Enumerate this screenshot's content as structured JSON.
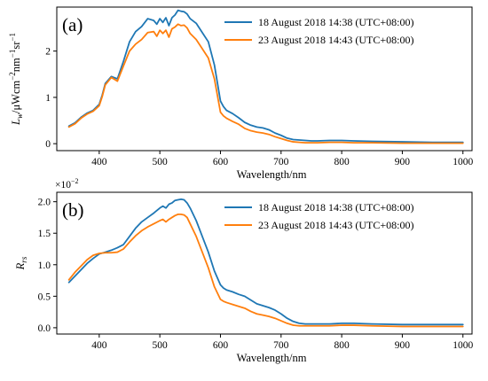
{
  "chart_data": [
    {
      "type": "line",
      "panel_label": "(a)",
      "xlabel": "Wavelength/nm",
      "ylabel_parts": [
        "L",
        "w",
        "/μWcm",
        "−2",
        "nm",
        "−1",
        "sr",
        "−1"
      ],
      "xlim": [
        330,
        1015
      ],
      "ylim": [
        -0.15,
        2.95
      ],
      "xticks": [
        400,
        500,
        600,
        700,
        800,
        900,
        1000
      ],
      "yticks": [
        0,
        1,
        2
      ],
      "legend_position": "top-right",
      "series": [
        {
          "name": "18 August 2018 14:38 (UTC+08:00)",
          "color": "#1f77b4",
          "x": [
            350,
            360,
            370,
            380,
            390,
            400,
            405,
            410,
            420,
            430,
            440,
            450,
            460,
            470,
            480,
            490,
            495,
            500,
            505,
            510,
            515,
            520,
            525,
            530,
            535,
            540,
            545,
            550,
            560,
            570,
            580,
            590,
            600,
            605,
            610,
            620,
            630,
            640,
            650,
            660,
            670,
            680,
            690,
            700,
            710,
            720,
            730,
            740,
            750,
            760,
            780,
            800,
            820,
            850,
            900,
            950,
            1000
          ],
          "y": [
            0.38,
            0.45,
            0.57,
            0.66,
            0.72,
            0.85,
            1.05,
            1.3,
            1.45,
            1.4,
            1.78,
            2.2,
            2.42,
            2.53,
            2.7,
            2.66,
            2.58,
            2.7,
            2.62,
            2.72,
            2.55,
            2.72,
            2.78,
            2.88,
            2.86,
            2.85,
            2.8,
            2.7,
            2.6,
            2.4,
            2.2,
            1.7,
            0.92,
            0.8,
            0.72,
            0.65,
            0.56,
            0.46,
            0.4,
            0.36,
            0.34,
            0.3,
            0.23,
            0.18,
            0.12,
            0.09,
            0.08,
            0.07,
            0.06,
            0.06,
            0.07,
            0.07,
            0.06,
            0.05,
            0.04,
            0.03,
            0.03
          ]
        },
        {
          "name": "23 August 2018 14:43 (UTC+08:00)",
          "color": "#ff7f0e",
          "x": [
            350,
            360,
            370,
            380,
            390,
            400,
            405,
            410,
            420,
            430,
            440,
            450,
            460,
            470,
            480,
            490,
            495,
            500,
            505,
            510,
            515,
            520,
            525,
            530,
            535,
            540,
            545,
            550,
            560,
            570,
            580,
            590,
            600,
            605,
            610,
            620,
            630,
            640,
            650,
            660,
            670,
            680,
            690,
            700,
            710,
            720,
            730,
            740,
            750,
            760,
            780,
            800,
            820,
            850,
            900,
            950,
            1000
          ],
          "y": [
            0.36,
            0.43,
            0.55,
            0.64,
            0.7,
            0.82,
            1.02,
            1.27,
            1.43,
            1.35,
            1.68,
            2.0,
            2.15,
            2.25,
            2.4,
            2.42,
            2.32,
            2.45,
            2.38,
            2.45,
            2.3,
            2.48,
            2.52,
            2.58,
            2.55,
            2.56,
            2.5,
            2.38,
            2.25,
            2.05,
            1.85,
            1.4,
            0.68,
            0.6,
            0.55,
            0.48,
            0.42,
            0.33,
            0.28,
            0.25,
            0.23,
            0.2,
            0.15,
            0.11,
            0.07,
            0.04,
            0.03,
            0.02,
            0.02,
            0.02,
            0.03,
            0.03,
            0.02,
            0.02,
            0.01,
            0.01,
            0.01
          ]
        }
      ]
    },
    {
      "type": "line",
      "panel_label": "(b)",
      "xlabel": "Wavelength/nm",
      "ylabel_parts": [
        "R",
        "rs"
      ],
      "scale_label_parts": [
        "×10",
        "−2"
      ],
      "xlim": [
        330,
        1015
      ],
      "ylim": [
        -0.1,
        2.15
      ],
      "xticks": [
        400,
        500,
        600,
        700,
        800,
        900,
        1000
      ],
      "yticks": [
        0.0,
        0.5,
        1.0,
        1.5,
        2.0
      ],
      "ytick_labels": [
        "0.0",
        "0.5",
        "1.0",
        "1.5",
        "2.0"
      ],
      "legend_position": "top-right",
      "series": [
        {
          "name": "18 August 2018 14:38 (UTC+08:00)",
          "color": "#1f77b4",
          "x": [
            350,
            360,
            370,
            380,
            390,
            400,
            410,
            420,
            430,
            440,
            450,
            460,
            470,
            480,
            490,
            500,
            505,
            510,
            515,
            520,
            525,
            530,
            535,
            540,
            545,
            550,
            560,
            570,
            580,
            590,
            600,
            605,
            610,
            620,
            630,
            640,
            650,
            660,
            670,
            680,
            690,
            700,
            710,
            720,
            730,
            740,
            750,
            760,
            780,
            800,
            820,
            850,
            900,
            950,
            1000
          ],
          "y": [
            0.72,
            0.82,
            0.92,
            1.02,
            1.1,
            1.17,
            1.2,
            1.23,
            1.27,
            1.32,
            1.45,
            1.58,
            1.68,
            1.75,
            1.82,
            1.9,
            1.93,
            1.9,
            1.96,
            1.98,
            2.02,
            2.03,
            2.04,
            2.03,
            1.98,
            1.9,
            1.7,
            1.45,
            1.2,
            0.9,
            0.68,
            0.63,
            0.6,
            0.57,
            0.53,
            0.5,
            0.44,
            0.38,
            0.35,
            0.32,
            0.28,
            0.22,
            0.15,
            0.1,
            0.07,
            0.06,
            0.06,
            0.06,
            0.06,
            0.07,
            0.07,
            0.06,
            0.05,
            0.05,
            0.05
          ]
        },
        {
          "name": "23 August 2018 14:43 (UTC+08:00)",
          "color": "#ff7f0e",
          "x": [
            350,
            360,
            370,
            380,
            390,
            400,
            410,
            420,
            430,
            440,
            450,
            460,
            470,
            480,
            490,
            500,
            505,
            510,
            515,
            520,
            525,
            530,
            535,
            540,
            545,
            550,
            560,
            570,
            580,
            590,
            600,
            605,
            610,
            620,
            630,
            640,
            650,
            660,
            670,
            680,
            690,
            700,
            710,
            720,
            730,
            740,
            750,
            760,
            780,
            800,
            820,
            850,
            900,
            950,
            1000
          ],
          "y": [
            0.76,
            0.88,
            0.98,
            1.08,
            1.15,
            1.18,
            1.19,
            1.19,
            1.2,
            1.25,
            1.36,
            1.46,
            1.54,
            1.6,
            1.65,
            1.7,
            1.72,
            1.68,
            1.72,
            1.75,
            1.78,
            1.8,
            1.8,
            1.79,
            1.75,
            1.65,
            1.45,
            1.2,
            0.95,
            0.65,
            0.45,
            0.42,
            0.4,
            0.37,
            0.34,
            0.31,
            0.26,
            0.22,
            0.2,
            0.18,
            0.15,
            0.11,
            0.07,
            0.04,
            0.03,
            0.03,
            0.03,
            0.03,
            0.03,
            0.04,
            0.04,
            0.03,
            0.02,
            0.02,
            0.02
          ]
        }
      ]
    }
  ]
}
